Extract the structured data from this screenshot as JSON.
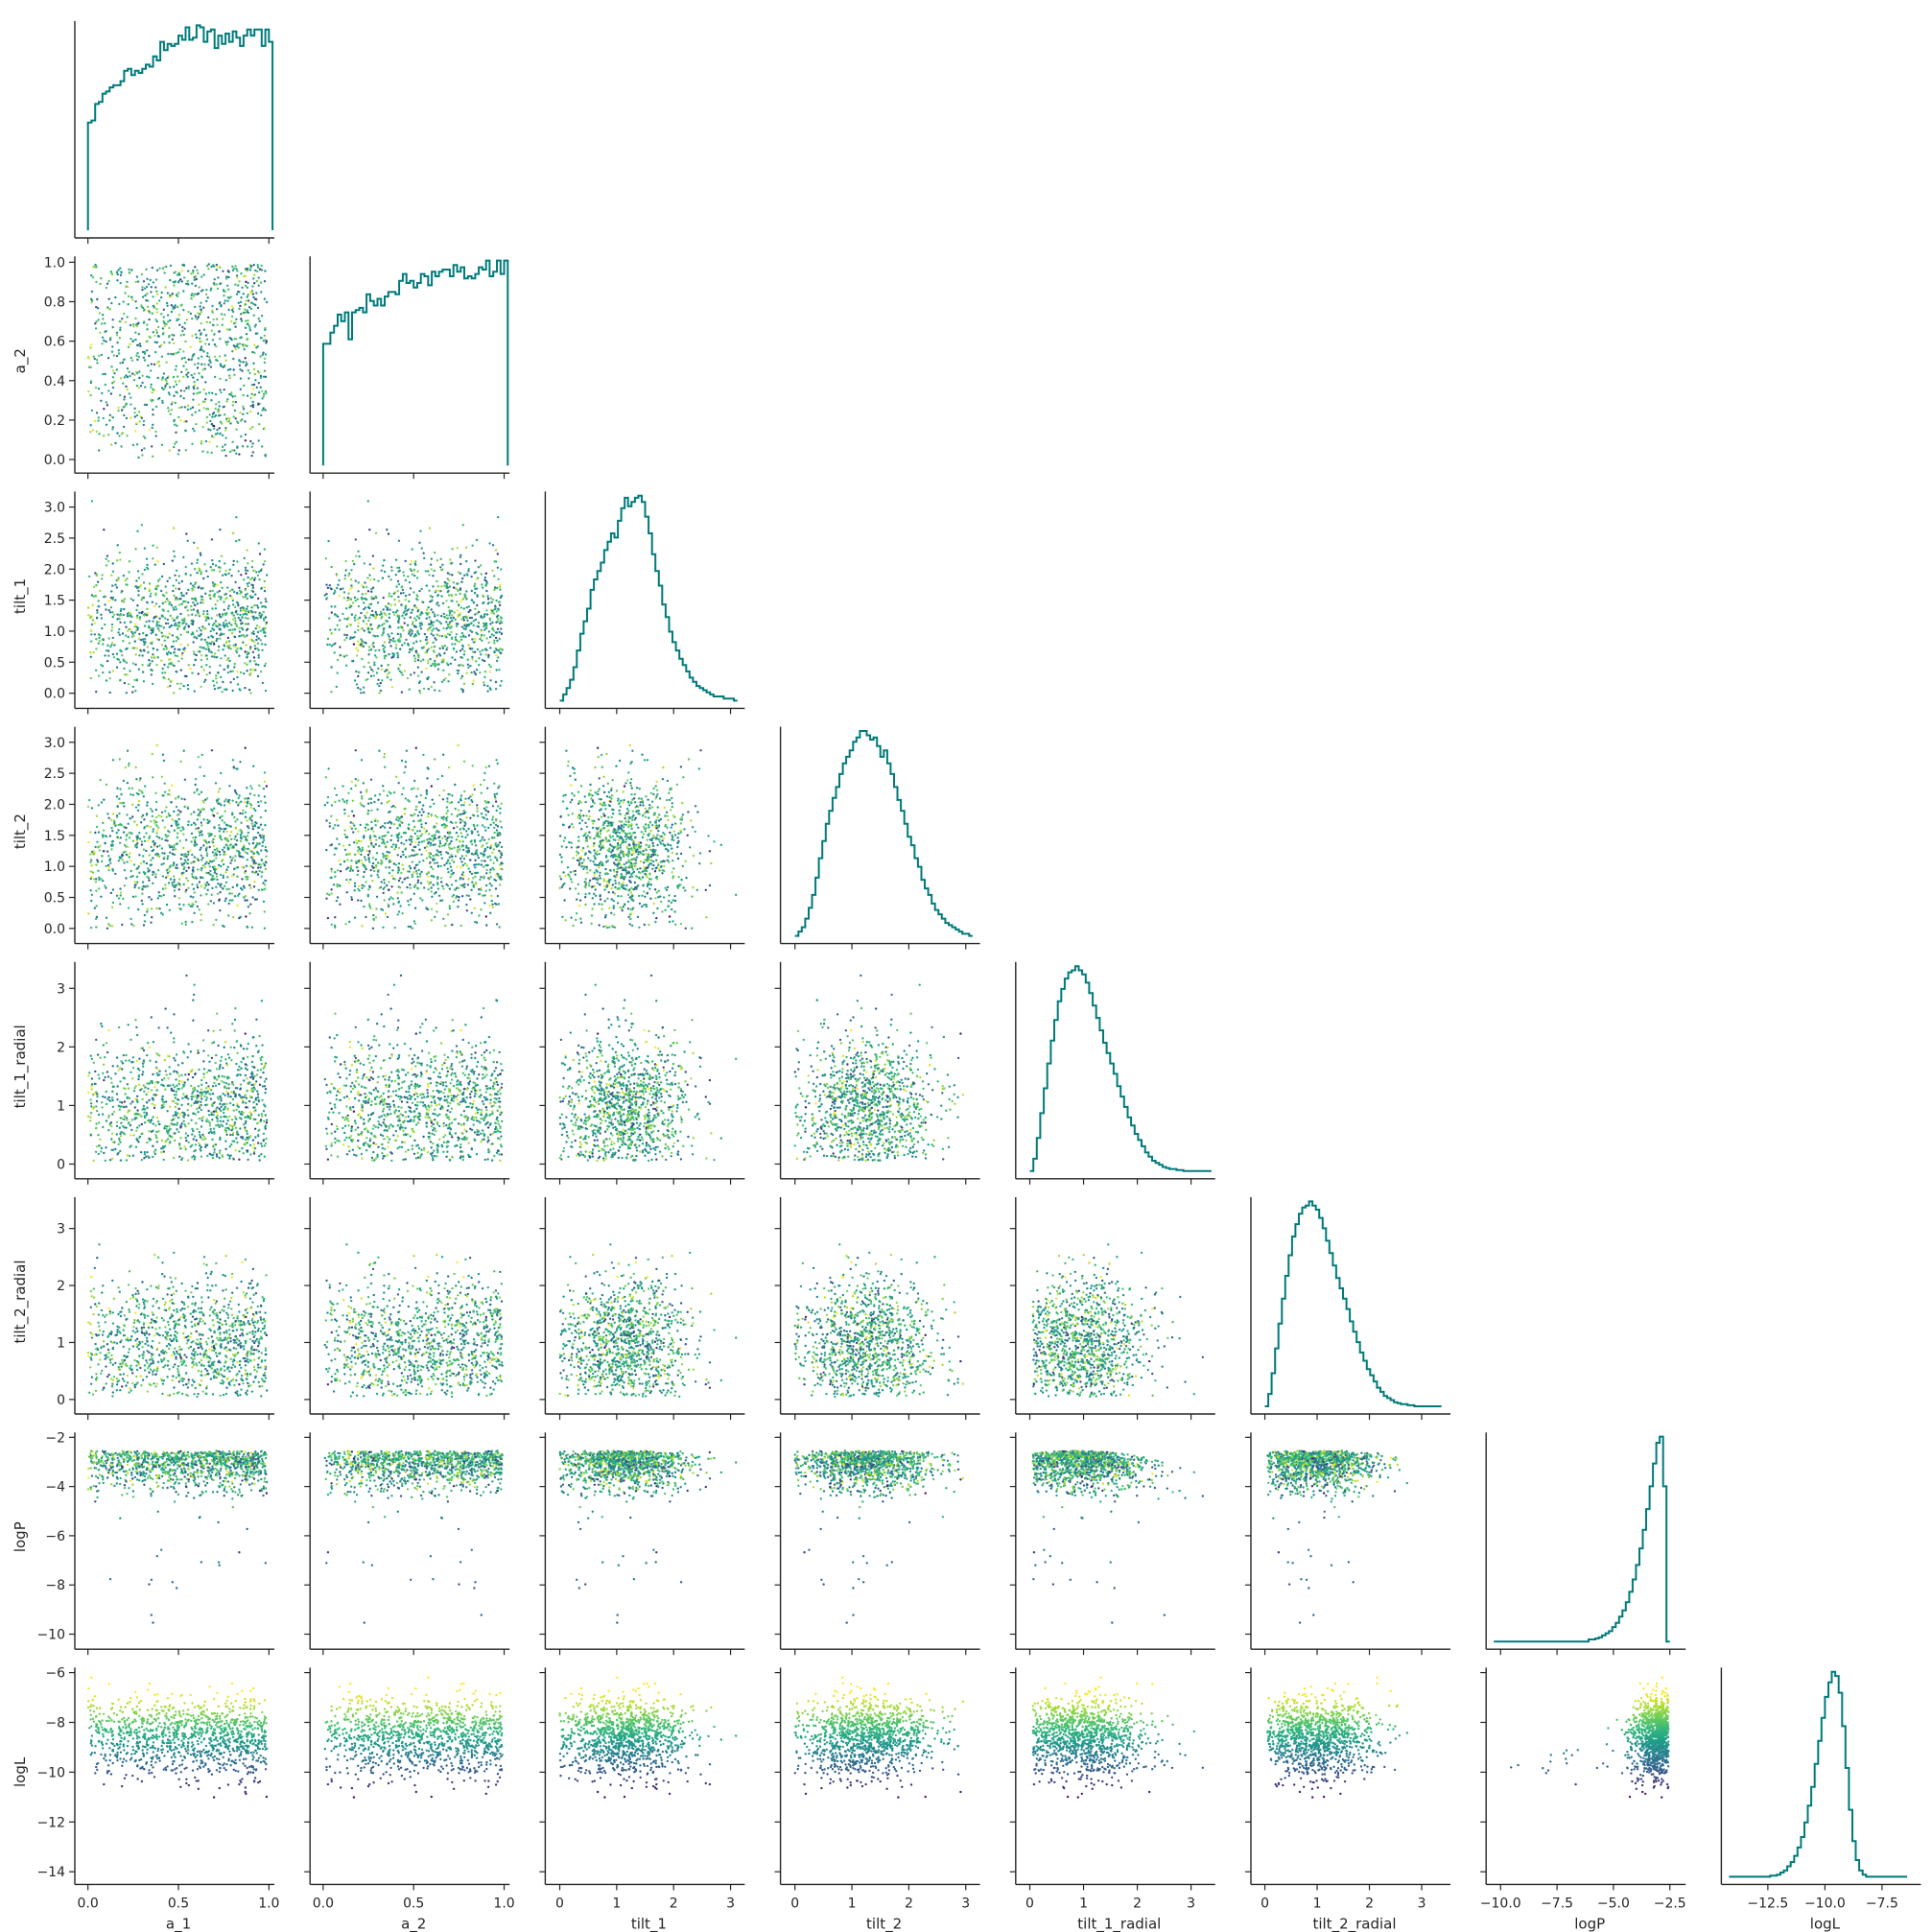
{
  "chart_data": {
    "type": "scatter",
    "title": "",
    "colormap": "viridis",
    "hist_color": "#007a7a",
    "variables": [
      {
        "name": "a_1",
        "label": "a_1",
        "range": [
          -0.03,
          1.03
        ],
        "ticks": [
          0.0,
          0.5,
          1.0
        ],
        "tick_labels": [
          "0.0",
          "0.5",
          "1.0"
        ]
      },
      {
        "name": "a_2",
        "label": "a_2",
        "range": [
          -0.03,
          1.03
        ],
        "ticks": [
          0.0,
          0.2,
          0.4,
          0.6,
          0.8,
          1.0
        ],
        "tick_labels": [
          "0.0",
          "0.2",
          "0.4",
          "0.6",
          "0.8",
          "1.0"
        ],
        "x_ticks": [
          0.0,
          0.5,
          1.0
        ],
        "x_tick_labels": [
          "0.0",
          "0.5",
          "1.0"
        ]
      },
      {
        "name": "tilt_1",
        "label": "tilt_1",
        "range": [
          -0.12,
          3.25
        ],
        "ticks": [
          0.0,
          0.5,
          1.0,
          1.5,
          2.0,
          2.5,
          3.0
        ],
        "tick_labels": [
          "0.0",
          "0.5",
          "1.0",
          "1.5",
          "2.0",
          "2.5",
          "3.0"
        ],
        "x_ticks": [
          0,
          1,
          2,
          3
        ],
        "x_tick_labels": [
          "0",
          "1",
          "2",
          "3"
        ]
      },
      {
        "name": "tilt_2",
        "label": "tilt_2",
        "range": [
          -0.12,
          3.25
        ],
        "ticks": [
          0.0,
          0.5,
          1.0,
          1.5,
          2.0,
          2.5,
          3.0
        ],
        "tick_labels": [
          "0.0",
          "0.5",
          "1.0",
          "1.5",
          "2.0",
          "2.5",
          "3.0"
        ],
        "x_ticks": [
          0,
          1,
          2,
          3
        ],
        "x_tick_labels": [
          "0",
          "1",
          "2",
          "3"
        ]
      },
      {
        "name": "tilt_1_radial",
        "label": "tilt_1_radial",
        "range": [
          -0.12,
          3.45
        ],
        "ticks": [
          0,
          1,
          2,
          3
        ],
        "tick_labels": [
          "0",
          "1",
          "2",
          "3"
        ]
      },
      {
        "name": "tilt_2_radial",
        "label": "tilt_2_radial",
        "range": [
          -0.12,
          3.55
        ],
        "ticks": [
          0,
          1,
          2,
          3
        ],
        "tick_labels": [
          "0",
          "1",
          "2",
          "3"
        ]
      },
      {
        "name": "logP",
        "label": "logP",
        "range": [
          -10.3,
          -1.8
        ],
        "ticks": [
          -10,
          -8,
          -6,
          -4,
          -2
        ],
        "tick_labels": [
          "−10",
          "−8",
          "−6",
          "−4",
          "−2"
        ],
        "x_ticks": [
          -10.0,
          -7.5,
          -5.0,
          -2.5
        ],
        "x_tick_labels": [
          "−10.0",
          "−7.5",
          "−5.0",
          "−2.5"
        ]
      },
      {
        "name": "logL",
        "label": "logL",
        "range": [
          -14.2,
          -5.8
        ],
        "ticks": [
          -14,
          -12,
          -10,
          -8,
          -6
        ],
        "tick_labels": [
          "−14",
          "−12",
          "−10",
          "−8",
          "−6"
        ],
        "x_ticks": [
          -12.5,
          -10.0,
          -7.5
        ],
        "x_tick_labels": [
          "−12.5",
          "−10.0",
          "−7.5"
        ]
      }
    ],
    "histograms": [
      {
        "variable": "a_1",
        "bin_start": 0.0,
        "bin_width": 0.02,
        "heights": [
          0.52,
          0.53,
          0.61,
          0.62,
          0.66,
          0.67,
          0.69,
          0.7,
          0.7,
          0.72,
          0.77,
          0.78,
          0.75,
          0.77,
          0.76,
          0.78,
          0.8,
          0.79,
          0.84,
          0.82,
          0.91,
          0.87,
          0.9,
          0.89,
          0.9,
          0.94,
          0.92,
          0.98,
          0.92,
          0.93,
          0.99,
          0.98,
          0.91,
          0.96,
          0.97,
          0.88,
          0.94,
          0.9,
          0.95,
          0.91,
          0.96,
          0.93,
          0.89,
          0.94,
          0.97,
          0.94,
          0.97,
          0.97,
          0.89,
          0.97,
          0.91
        ]
      },
      {
        "variable": "a_2",
        "bin_start": 0.0,
        "bin_width": 0.02,
        "heights": [
          0.54,
          0.54,
          0.59,
          0.62,
          0.67,
          0.64,
          0.68,
          0.56,
          0.68,
          0.69,
          0.7,
          0.68,
          0.76,
          0.73,
          0.71,
          0.74,
          0.71,
          0.75,
          0.77,
          0.77,
          0.76,
          0.82,
          0.85,
          0.81,
          0.82,
          0.79,
          0.81,
          0.85,
          0.84,
          0.8,
          0.86,
          0.84,
          0.86,
          0.87,
          0.87,
          0.84,
          0.89,
          0.86,
          0.88,
          0.83,
          0.84,
          0.83,
          0.85,
          0.88,
          0.87,
          0.91,
          0.84,
          0.86,
          0.91,
          0.85,
          0.91
        ]
      },
      {
        "variable": "tilt_1",
        "bin_start": 0.0,
        "bin_width": 0.06,
        "heights": [
          0.0,
          0.03,
          0.06,
          0.1,
          0.16,
          0.24,
          0.32,
          0.38,
          0.44,
          0.53,
          0.58,
          0.62,
          0.66,
          0.72,
          0.76,
          0.8,
          0.78,
          0.86,
          0.92,
          0.97,
          0.93,
          0.95,
          0.97,
          0.98,
          0.95,
          0.88,
          0.8,
          0.7,
          0.62,
          0.55,
          0.46,
          0.4,
          0.33,
          0.28,
          0.24,
          0.2,
          0.17,
          0.14,
          0.11,
          0.09,
          0.07,
          0.06,
          0.05,
          0.04,
          0.03,
          0.02,
          0.02,
          0.02,
          0.01,
          0.01,
          0.01,
          0.0
        ]
      },
      {
        "variable": "tilt_2",
        "bin_start": 0.0,
        "bin_width": 0.06,
        "heights": [
          0.0,
          0.02,
          0.04,
          0.08,
          0.13,
          0.19,
          0.27,
          0.36,
          0.44,
          0.52,
          0.58,
          0.64,
          0.69,
          0.75,
          0.8,
          0.83,
          0.86,
          0.9,
          0.92,
          0.95,
          0.95,
          0.93,
          0.91,
          0.92,
          0.88,
          0.83,
          0.86,
          0.8,
          0.75,
          0.69,
          0.63,
          0.58,
          0.52,
          0.46,
          0.42,
          0.36,
          0.32,
          0.26,
          0.22,
          0.19,
          0.15,
          0.12,
          0.1,
          0.08,
          0.06,
          0.05,
          0.04,
          0.03,
          0.02,
          0.01,
          0.01,
          0.0
        ]
      },
      {
        "variable": "tilt_1_radial",
        "bin_start": 0.0,
        "bin_width": 0.065,
        "heights": [
          0.0,
          0.06,
          0.16,
          0.28,
          0.4,
          0.52,
          0.63,
          0.73,
          0.82,
          0.88,
          0.93,
          0.96,
          0.97,
          0.99,
          0.97,
          0.95,
          0.91,
          0.86,
          0.8,
          0.74,
          0.68,
          0.62,
          0.57,
          0.52,
          0.47,
          0.41,
          0.36,
          0.31,
          0.26,
          0.22,
          0.18,
          0.15,
          0.12,
          0.09,
          0.07,
          0.05,
          0.04,
          0.03,
          0.02,
          0.015,
          0.01,
          0.01,
          0.005,
          0.005,
          0.0,
          0.0,
          0.0,
          0.0,
          0.0,
          0.0,
          0.0,
          0.0
        ]
      },
      {
        "variable": "tilt_2_radial",
        "bin_start": 0.0,
        "bin_width": 0.065,
        "heights": [
          0.0,
          0.06,
          0.16,
          0.28,
          0.4,
          0.52,
          0.63,
          0.73,
          0.82,
          0.88,
          0.93,
          0.96,
          0.97,
          0.99,
          0.97,
          0.95,
          0.91,
          0.86,
          0.8,
          0.74,
          0.68,
          0.62,
          0.57,
          0.52,
          0.47,
          0.41,
          0.36,
          0.31,
          0.26,
          0.22,
          0.18,
          0.15,
          0.12,
          0.09,
          0.07,
          0.05,
          0.04,
          0.03,
          0.02,
          0.015,
          0.01,
          0.01,
          0.005,
          0.005,
          0.0,
          0.0,
          0.0,
          0.0,
          0.0,
          0.0,
          0.0,
          0.0
        ]
      },
      {
        "variable": "logP",
        "bin_start": -10.3,
        "bin_width": 0.15,
        "heights": [
          0.0,
          0.0,
          0.0,
          0.0,
          0.0,
          0.0,
          0.0,
          0.0,
          0.0,
          0.0,
          0.0,
          0.0,
          0.0,
          0.0,
          0.0,
          0.0,
          0.0,
          0.0,
          0.0,
          0.0,
          0.0,
          0.0,
          0.0,
          0.0,
          0.0,
          0.0,
          0.0,
          0.0,
          0.01,
          0.01,
          0.015,
          0.02,
          0.03,
          0.04,
          0.05,
          0.07,
          0.09,
          0.12,
          0.15,
          0.19,
          0.24,
          0.3,
          0.37,
          0.45,
          0.54,
          0.64,
          0.75,
          0.86,
          0.96,
          0.99,
          0.75,
          0.0
        ]
      },
      {
        "variable": "logL",
        "bin_start": -14.2,
        "bin_width": 0.15,
        "heights": [
          0.0,
          0.0,
          0.0,
          0.0,
          0.0,
          0.0,
          0.0,
          0.0,
          0.0,
          0.0,
          0.0,
          0.0,
          0.005,
          0.005,
          0.01,
          0.02,
          0.03,
          0.05,
          0.07,
          0.1,
          0.14,
          0.19,
          0.26,
          0.34,
          0.43,
          0.54,
          0.65,
          0.76,
          0.86,
          0.93,
          0.98,
          0.96,
          0.88,
          0.72,
          0.52,
          0.32,
          0.17,
          0.08,
          0.03,
          0.01,
          0.0,
          0.0,
          0.0,
          0.0,
          0.0,
          0.0,
          0.0,
          0.0,
          0.0,
          0.0,
          0.0,
          0.0
        ]
      }
    ],
    "scatter_points_per_panel": 1100,
    "color_variable": "logL"
  }
}
